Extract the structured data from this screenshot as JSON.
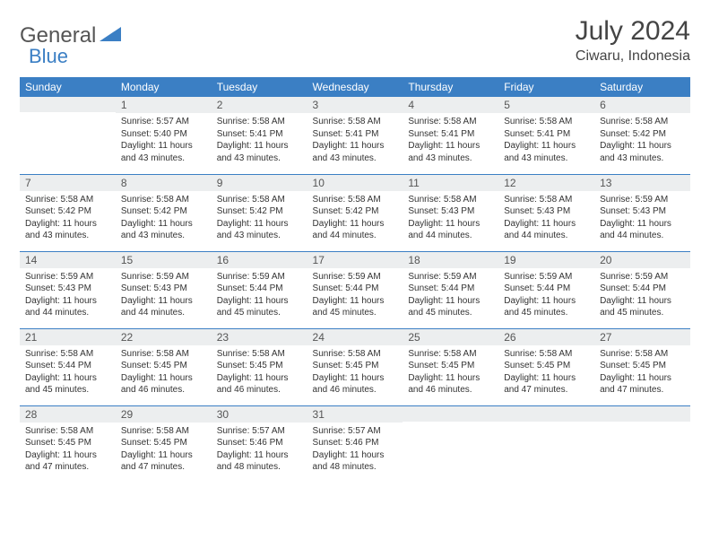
{
  "logo": {
    "part1": "General",
    "part2": "Blue"
  },
  "title": "July 2024",
  "location": "Ciwaru, Indonesia",
  "colors": {
    "brand": "#3b7fc4",
    "header_bg": "#3b7fc4",
    "header_text": "#ffffff",
    "daynum_bg": "#eceeef",
    "text": "#333333"
  },
  "day_headers": [
    "Sunday",
    "Monday",
    "Tuesday",
    "Wednesday",
    "Thursday",
    "Friday",
    "Saturday"
  ],
  "weeks": [
    [
      null,
      {
        "n": "1",
        "sr": "5:57 AM",
        "ss": "5:40 PM",
        "dl": "11 hours and 43 minutes."
      },
      {
        "n": "2",
        "sr": "5:58 AM",
        "ss": "5:41 PM",
        "dl": "11 hours and 43 minutes."
      },
      {
        "n": "3",
        "sr": "5:58 AM",
        "ss": "5:41 PM",
        "dl": "11 hours and 43 minutes."
      },
      {
        "n": "4",
        "sr": "5:58 AM",
        "ss": "5:41 PM",
        "dl": "11 hours and 43 minutes."
      },
      {
        "n": "5",
        "sr": "5:58 AM",
        "ss": "5:41 PM",
        "dl": "11 hours and 43 minutes."
      },
      {
        "n": "6",
        "sr": "5:58 AM",
        "ss": "5:42 PM",
        "dl": "11 hours and 43 minutes."
      }
    ],
    [
      {
        "n": "7",
        "sr": "5:58 AM",
        "ss": "5:42 PM",
        "dl": "11 hours and 43 minutes."
      },
      {
        "n": "8",
        "sr": "5:58 AM",
        "ss": "5:42 PM",
        "dl": "11 hours and 43 minutes."
      },
      {
        "n": "9",
        "sr": "5:58 AM",
        "ss": "5:42 PM",
        "dl": "11 hours and 43 minutes."
      },
      {
        "n": "10",
        "sr": "5:58 AM",
        "ss": "5:42 PM",
        "dl": "11 hours and 44 minutes."
      },
      {
        "n": "11",
        "sr": "5:58 AM",
        "ss": "5:43 PM",
        "dl": "11 hours and 44 minutes."
      },
      {
        "n": "12",
        "sr": "5:58 AM",
        "ss": "5:43 PM",
        "dl": "11 hours and 44 minutes."
      },
      {
        "n": "13",
        "sr": "5:59 AM",
        "ss": "5:43 PM",
        "dl": "11 hours and 44 minutes."
      }
    ],
    [
      {
        "n": "14",
        "sr": "5:59 AM",
        "ss": "5:43 PM",
        "dl": "11 hours and 44 minutes."
      },
      {
        "n": "15",
        "sr": "5:59 AM",
        "ss": "5:43 PM",
        "dl": "11 hours and 44 minutes."
      },
      {
        "n": "16",
        "sr": "5:59 AM",
        "ss": "5:44 PM",
        "dl": "11 hours and 45 minutes."
      },
      {
        "n": "17",
        "sr": "5:59 AM",
        "ss": "5:44 PM",
        "dl": "11 hours and 45 minutes."
      },
      {
        "n": "18",
        "sr": "5:59 AM",
        "ss": "5:44 PM",
        "dl": "11 hours and 45 minutes."
      },
      {
        "n": "19",
        "sr": "5:59 AM",
        "ss": "5:44 PM",
        "dl": "11 hours and 45 minutes."
      },
      {
        "n": "20",
        "sr": "5:59 AM",
        "ss": "5:44 PM",
        "dl": "11 hours and 45 minutes."
      }
    ],
    [
      {
        "n": "21",
        "sr": "5:58 AM",
        "ss": "5:44 PM",
        "dl": "11 hours and 45 minutes."
      },
      {
        "n": "22",
        "sr": "5:58 AM",
        "ss": "5:45 PM",
        "dl": "11 hours and 46 minutes."
      },
      {
        "n": "23",
        "sr": "5:58 AM",
        "ss": "5:45 PM",
        "dl": "11 hours and 46 minutes."
      },
      {
        "n": "24",
        "sr": "5:58 AM",
        "ss": "5:45 PM",
        "dl": "11 hours and 46 minutes."
      },
      {
        "n": "25",
        "sr": "5:58 AM",
        "ss": "5:45 PM",
        "dl": "11 hours and 46 minutes."
      },
      {
        "n": "26",
        "sr": "5:58 AM",
        "ss": "5:45 PM",
        "dl": "11 hours and 47 minutes."
      },
      {
        "n": "27",
        "sr": "5:58 AM",
        "ss": "5:45 PM",
        "dl": "11 hours and 47 minutes."
      }
    ],
    [
      {
        "n": "28",
        "sr": "5:58 AM",
        "ss": "5:45 PM",
        "dl": "11 hours and 47 minutes."
      },
      {
        "n": "29",
        "sr": "5:58 AM",
        "ss": "5:45 PM",
        "dl": "11 hours and 47 minutes."
      },
      {
        "n": "30",
        "sr": "5:57 AM",
        "ss": "5:46 PM",
        "dl": "11 hours and 48 minutes."
      },
      {
        "n": "31",
        "sr": "5:57 AM",
        "ss": "5:46 PM",
        "dl": "11 hours and 48 minutes."
      },
      null,
      null,
      null
    ]
  ],
  "labels": {
    "sunrise": "Sunrise:",
    "sunset": "Sunset:",
    "daylight": "Daylight:"
  }
}
